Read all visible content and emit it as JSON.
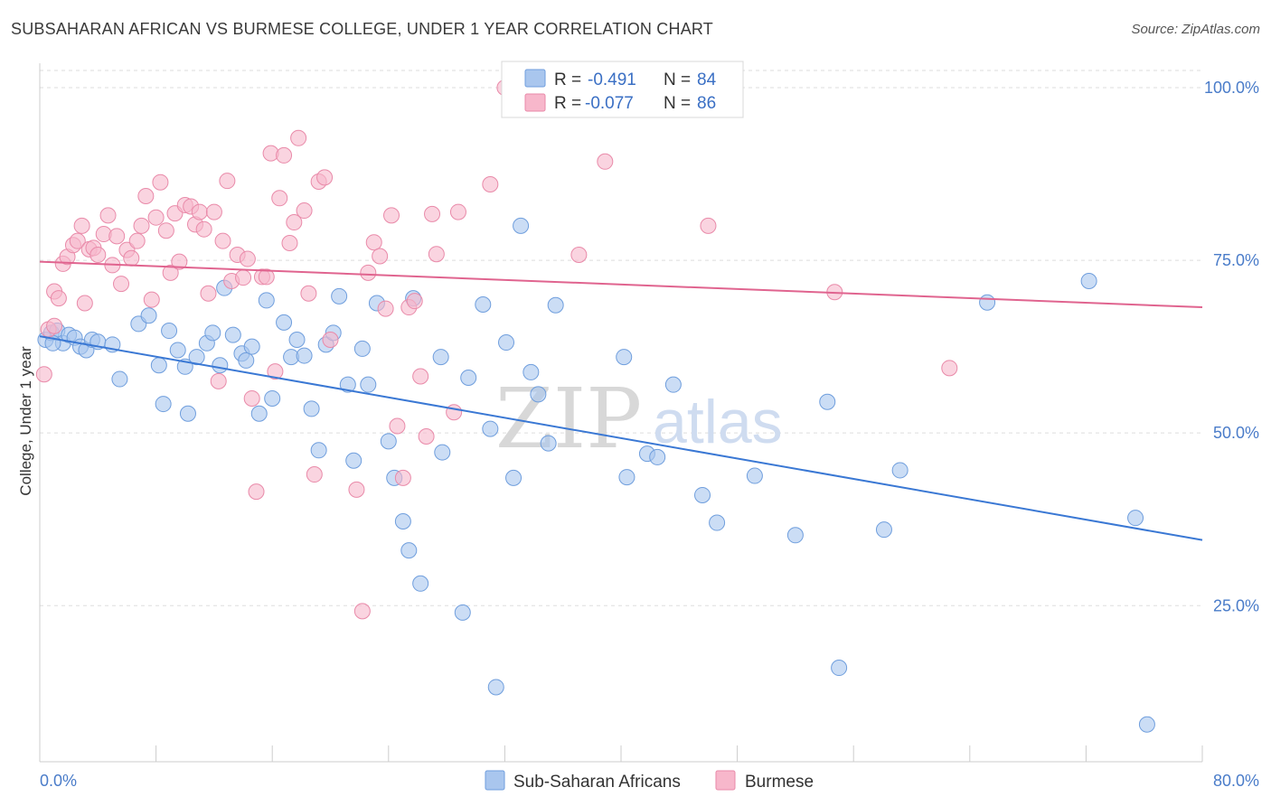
{
  "title": "SUBSAHARAN AFRICAN VS BURMESE COLLEGE, UNDER 1 YEAR CORRELATION CHART",
  "source": "Source: ZipAtlas.com",
  "legend": {
    "rows": [
      {
        "r_label": "R =",
        "r_value": "-0.491",
        "n_label": "N =",
        "n_value": "84",
        "color": "#a9c6ee"
      },
      {
        "r_label": "R =",
        "r_value": "-0.077",
        "n_label": "N =",
        "n_value": "86",
        "color": "#f7b7cb"
      }
    ]
  },
  "bottom_legend": [
    "Sub-Saharan Africans",
    "Burmese"
  ],
  "watermark": {
    "zip": "ZIP",
    "atlas": "atlas"
  },
  "colors": {
    "blue_fill": "#a9c6ee",
    "blue_stroke": "#6f9edd",
    "blue_line": "#3a78d4",
    "pink_fill": "#f7b7cb",
    "pink_stroke": "#e98aa9",
    "pink_line": "#e0648f",
    "grid": "#dddddd",
    "tick_label": "#4a7cc9"
  },
  "chart_data": {
    "type": "scatter",
    "title": "SUBSAHARAN AFRICAN VS BURMESE COLLEGE, UNDER 1 YEAR CORRELATION CHART",
    "xlabel": "",
    "ylabel": "College, Under 1 year",
    "xlim": [
      0,
      80
    ],
    "ylim": [
      0,
      102
    ],
    "x_tick_labels": [
      "0.0%",
      "80.0%"
    ],
    "y_ticks": [
      25,
      50,
      75,
      100
    ],
    "y_tick_labels": [
      "25.0%",
      "50.0%",
      "75.0%",
      "100.0%"
    ],
    "grid": true,
    "legend_position": "top-center",
    "series": [
      {
        "name": "Sub-Saharan Africans",
        "r": -0.491,
        "n": 84,
        "trend": {
          "x": [
            0,
            80
          ],
          "y": [
            64.0,
            34.5
          ]
        },
        "points": [
          [
            0.4,
            63.5
          ],
          [
            0.8,
            64.5
          ],
          [
            1.2,
            64.8
          ],
          [
            1.6,
            63.0
          ],
          [
            2.0,
            64.2
          ],
          [
            2.4,
            63.8
          ],
          [
            2.8,
            62.5
          ],
          [
            3.2,
            62.0
          ],
          [
            3.6,
            63.5
          ],
          [
            4.0,
            63.2
          ],
          [
            5.0,
            62.8
          ],
          [
            5.5,
            57.8
          ],
          [
            6.8,
            65.8
          ],
          [
            7.5,
            67.0
          ],
          [
            8.2,
            59.8
          ],
          [
            8.5,
            54.2
          ],
          [
            8.9,
            64.8
          ],
          [
            9.5,
            62.0
          ],
          [
            10.0,
            59.6
          ],
          [
            10.2,
            52.8
          ],
          [
            10.8,
            61.0
          ],
          [
            11.5,
            63.0
          ],
          [
            11.9,
            64.5
          ],
          [
            12.4,
            59.8
          ],
          [
            12.7,
            71.0
          ],
          [
            13.3,
            64.2
          ],
          [
            13.9,
            61.5
          ],
          [
            14.2,
            60.5
          ],
          [
            14.6,
            62.5
          ],
          [
            15.1,
            52.8
          ],
          [
            15.6,
            69.2
          ],
          [
            16.0,
            55.0
          ],
          [
            16.8,
            66.0
          ],
          [
            17.3,
            61.0
          ],
          [
            17.7,
            63.5
          ],
          [
            18.2,
            61.2
          ],
          [
            18.7,
            53.5
          ],
          [
            19.2,
            47.5
          ],
          [
            19.7,
            62.8
          ],
          [
            20.2,
            64.5
          ],
          [
            20.6,
            69.8
          ],
          [
            21.2,
            57.0
          ],
          [
            21.6,
            46.0
          ],
          [
            22.2,
            62.2
          ],
          [
            22.6,
            57.0
          ],
          [
            23.2,
            68.8
          ],
          [
            24.0,
            48.8
          ],
          [
            24.4,
            43.5
          ],
          [
            25.0,
            37.2
          ],
          [
            25.4,
            33.0
          ],
          [
            25.7,
            69.5
          ],
          [
            26.2,
            28.2
          ],
          [
            27.6,
            61.0
          ],
          [
            27.7,
            47.2
          ],
          [
            29.1,
            24.0
          ],
          [
            29.5,
            58.0
          ],
          [
            30.5,
            68.6
          ],
          [
            31.0,
            50.6
          ],
          [
            31.4,
            13.2
          ],
          [
            32.1,
            63.1
          ],
          [
            32.6,
            43.5
          ],
          [
            33.1,
            80.0
          ],
          [
            33.8,
            58.8
          ],
          [
            34.3,
            55.6
          ],
          [
            35.0,
            48.5
          ],
          [
            35.5,
            68.5
          ],
          [
            40.2,
            61.0
          ],
          [
            40.4,
            43.6
          ],
          [
            41.8,
            47.0
          ],
          [
            42.5,
            46.5
          ],
          [
            43.6,
            57.0
          ],
          [
            45.6,
            41.0
          ],
          [
            46.6,
            37.0
          ],
          [
            49.2,
            43.8
          ],
          [
            52.0,
            35.2
          ],
          [
            54.2,
            54.5
          ],
          [
            55.0,
            16.0
          ],
          [
            58.1,
            36.0
          ],
          [
            59.2,
            44.6
          ],
          [
            65.2,
            68.9
          ],
          [
            72.2,
            72.0
          ],
          [
            75.4,
            37.7
          ],
          [
            76.2,
            7.8
          ],
          [
            0.9,
            63.0
          ]
        ]
      },
      {
        "name": "Burmese",
        "r": -0.077,
        "n": 86,
        "trend": {
          "x": [
            0,
            80
          ],
          "y": [
            74.8,
            68.2
          ]
        },
        "points": [
          [
            0.3,
            58.5
          ],
          [
            0.6,
            65.0
          ],
          [
            1.0,
            70.5
          ],
          [
            1.3,
            69.5
          ],
          [
            1.6,
            74.5
          ],
          [
            1.9,
            75.5
          ],
          [
            2.3,
            77.2
          ],
          [
            2.6,
            77.8
          ],
          [
            2.9,
            80.0
          ],
          [
            3.1,
            68.8
          ],
          [
            3.4,
            76.6
          ],
          [
            3.7,
            76.8
          ],
          [
            4.0,
            75.8
          ],
          [
            4.4,
            78.8
          ],
          [
            4.7,
            81.5
          ],
          [
            5.0,
            74.3
          ],
          [
            5.3,
            78.5
          ],
          [
            5.6,
            71.6
          ],
          [
            6.0,
            76.5
          ],
          [
            6.3,
            75.3
          ],
          [
            6.7,
            77.8
          ],
          [
            7.0,
            80.0
          ],
          [
            7.3,
            84.3
          ],
          [
            7.7,
            69.3
          ],
          [
            8.0,
            81.2
          ],
          [
            8.3,
            86.3
          ],
          [
            8.7,
            79.3
          ],
          [
            9.0,
            73.2
          ],
          [
            9.3,
            81.8
          ],
          [
            9.6,
            74.8
          ],
          [
            10.0,
            83.0
          ],
          [
            10.4,
            82.8
          ],
          [
            10.7,
            80.2
          ],
          [
            11.0,
            82.0
          ],
          [
            11.3,
            79.5
          ],
          [
            11.6,
            70.2
          ],
          [
            12.0,
            82.0
          ],
          [
            12.3,
            57.5
          ],
          [
            12.6,
            77.8
          ],
          [
            12.9,
            86.5
          ],
          [
            13.2,
            72.0
          ],
          [
            13.6,
            75.8
          ],
          [
            14.0,
            72.5
          ],
          [
            14.3,
            75.2
          ],
          [
            14.6,
            55.0
          ],
          [
            14.9,
            41.5
          ],
          [
            15.3,
            72.6
          ],
          [
            15.6,
            72.6
          ],
          [
            15.9,
            90.5
          ],
          [
            16.2,
            58.9
          ],
          [
            16.5,
            84.0
          ],
          [
            16.8,
            90.2
          ],
          [
            17.2,
            77.5
          ],
          [
            17.5,
            80.5
          ],
          [
            17.8,
            92.7
          ],
          [
            18.2,
            82.2
          ],
          [
            18.5,
            70.2
          ],
          [
            18.9,
            44.0
          ],
          [
            19.2,
            86.4
          ],
          [
            19.6,
            87.0
          ],
          [
            20.0,
            63.5
          ],
          [
            21.8,
            41.8
          ],
          [
            22.2,
            24.2
          ],
          [
            22.6,
            73.2
          ],
          [
            23.0,
            77.6
          ],
          [
            23.4,
            75.6
          ],
          [
            23.8,
            68.0
          ],
          [
            24.2,
            81.5
          ],
          [
            24.6,
            51.0
          ],
          [
            25.0,
            43.5
          ],
          [
            25.4,
            68.2
          ],
          [
            25.8,
            69.1
          ],
          [
            26.2,
            58.2
          ],
          [
            26.6,
            49.5
          ],
          [
            27.0,
            81.7
          ],
          [
            27.3,
            75.9
          ],
          [
            28.5,
            53.0
          ],
          [
            28.8,
            82.0
          ],
          [
            31.0,
            86.0
          ],
          [
            32.0,
            100.0
          ],
          [
            37.1,
            75.8
          ],
          [
            38.9,
            89.3
          ],
          [
            46.0,
            80.0
          ],
          [
            54.7,
            70.4
          ],
          [
            62.6,
            59.4
          ],
          [
            1.0,
            65.5
          ]
        ]
      }
    ]
  }
}
